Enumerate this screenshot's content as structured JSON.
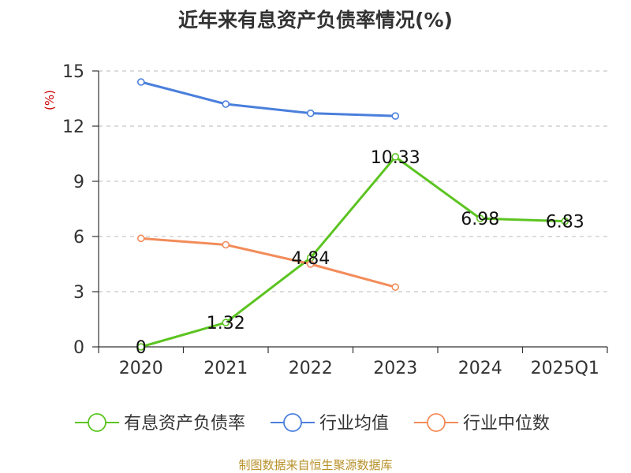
{
  "chart_data": {
    "type": "line",
    "title": "近年来有息资产负债率情况(%)",
    "ylabel": "(%)",
    "xlabel": "",
    "categories": [
      "2020",
      "2021",
      "2022",
      "2023",
      "2024",
      "2025Q1"
    ],
    "ylim": [
      0,
      15
    ],
    "yticks": [
      0,
      3,
      6,
      9,
      12,
      15
    ],
    "grid": true,
    "legend_position": "bottom",
    "series": [
      {
        "name": "有息资产负债率",
        "color": "#5cc421",
        "show_labels": true,
        "values": [
          0,
          1.32,
          4.84,
          10.33,
          6.98,
          6.83
        ],
        "labels": [
          "0",
          "1.32",
          "4.84",
          "10.33",
          "6.98",
          "6.83"
        ]
      },
      {
        "name": "行业均值",
        "color": "#4a7fdc",
        "show_labels": false,
        "values": [
          14.4,
          13.2,
          12.7,
          12.55,
          null,
          null
        ]
      },
      {
        "name": "行业中位数",
        "color": "#f28c5a",
        "show_labels": false,
        "values": [
          5.9,
          5.55,
          4.5,
          3.25,
          null,
          null
        ]
      }
    ]
  },
  "source": "制图数据来自恒生聚源数据库"
}
